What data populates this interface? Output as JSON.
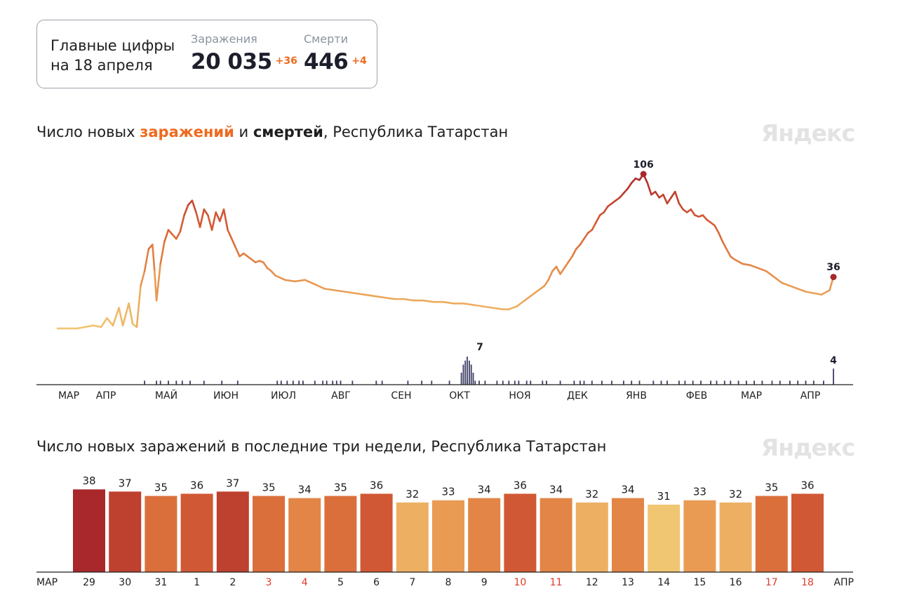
{
  "summary": {
    "title_line1": "Главные цифры",
    "title_line2": "на 18 апреля",
    "cases": {
      "label": "Заражения",
      "value": "20 035",
      "delta": "+36"
    },
    "deaths": {
      "label": "Смерти",
      "value": "446",
      "delta": "+4"
    }
  },
  "brand": "Яндекс",
  "colors": {
    "accent": "#ef6a1f",
    "deaths_bars": "#3d3e63",
    "holiday": "#e0392b"
  },
  "chart_data": [
    {
      "type": "line",
      "title_parts": [
        "Число новых ",
        "заражений",
        " и ",
        "смертей",
        ", Республика Татарстан"
      ],
      "x_labels": [
        "МАР",
        "АПР",
        "МАЙ",
        "ИЮН",
        "ИЮЛ",
        "АВГ",
        "СЕН",
        "ОКТ",
        "НОЯ",
        "ДЕК",
        "ЯНВ",
        "ФЕВ",
        "МАР",
        "АПР"
      ],
      "series": [
        {
          "values": [
            [
              0,
              1
            ],
            [
              10,
              1
            ],
            [
              14,
              2
            ],
            [
              18,
              3
            ],
            [
              22,
              2
            ],
            [
              25,
              8
            ],
            [
              28,
              3
            ],
            [
              31,
              15
            ],
            [
              33,
              3
            ],
            [
              36,
              18
            ],
            [
              38,
              4
            ],
            [
              40,
              2
            ],
            [
              42,
              30
            ],
            [
              44,
              40
            ],
            [
              46,
              55
            ],
            [
              48,
              58
            ],
            [
              49,
              40
            ],
            [
              50,
              20
            ],
            [
              52,
              45
            ],
            [
              54,
              60
            ],
            [
              56,
              68
            ],
            [
              58,
              65
            ],
            [
              60,
              62
            ],
            [
              62,
              67
            ],
            [
              64,
              78
            ],
            [
              66,
              85
            ],
            [
              68,
              88
            ],
            [
              70,
              80
            ],
            [
              72,
              70
            ],
            [
              74,
              82
            ],
            [
              76,
              78
            ],
            [
              78,
              68
            ],
            [
              80,
              80
            ],
            [
              82,
              74
            ],
            [
              84,
              82
            ],
            [
              86,
              68
            ],
            [
              88,
              62
            ],
            [
              90,
              56
            ],
            [
              92,
              50
            ],
            [
              94,
              52
            ],
            [
              96,
              50
            ],
            [
              98,
              48
            ],
            [
              100,
              46
            ],
            [
              102,
              47
            ],
            [
              104,
              46
            ],
            [
              106,
              42
            ],
            [
              108,
              40
            ],
            [
              110,
              37
            ],
            [
              115,
              34
            ],
            [
              120,
              33
            ],
            [
              125,
              34
            ],
            [
              130,
              31
            ],
            [
              135,
              28
            ],
            [
              140,
              27
            ],
            [
              145,
              26
            ],
            [
              150,
              25
            ],
            [
              155,
              24
            ],
            [
              160,
              23
            ],
            [
              165,
              22
            ],
            [
              170,
              21
            ],
            [
              175,
              21
            ],
            [
              180,
              20
            ],
            [
              185,
              20
            ],
            [
              190,
              19
            ],
            [
              195,
              19
            ],
            [
              200,
              18
            ],
            [
              205,
              18
            ],
            [
              210,
              17
            ],
            [
              215,
              16
            ],
            [
              220,
              15
            ],
            [
              225,
              14
            ],
            [
              228,
              14
            ],
            [
              232,
              16
            ],
            [
              236,
              20
            ],
            [
              240,
              24
            ],
            [
              244,
              28
            ],
            [
              246,
              30
            ],
            [
              248,
              34
            ],
            [
              250,
              40
            ],
            [
              252,
              43
            ],
            [
              254,
              38
            ],
            [
              256,
              42
            ],
            [
              258,
              46
            ],
            [
              260,
              50
            ],
            [
              262,
              55
            ],
            [
              264,
              58
            ],
            [
              266,
              62
            ],
            [
              268,
              66
            ],
            [
              270,
              68
            ],
            [
              272,
              73
            ],
            [
              274,
              78
            ],
            [
              276,
              80
            ],
            [
              278,
              84
            ],
            [
              280,
              86
            ],
            [
              282,
              88
            ],
            [
              284,
              90
            ],
            [
              286,
              93
            ],
            [
              288,
              96
            ],
            [
              290,
              100
            ],
            [
              292,
              103
            ],
            [
              294,
              102
            ],
            [
              296,
              106
            ],
            [
              298,
              100
            ],
            [
              300,
              92
            ],
            [
              302,
              94
            ],
            [
              304,
              90
            ],
            [
              306,
              92
            ],
            [
              308,
              86
            ],
            [
              310,
              90
            ],
            [
              312,
              94
            ],
            [
              314,
              86
            ],
            [
              316,
              82
            ],
            [
              318,
              80
            ],
            [
              320,
              82
            ],
            [
              322,
              78
            ],
            [
              324,
              77
            ],
            [
              326,
              78
            ],
            [
              328,
              75
            ],
            [
              330,
              73
            ],
            [
              332,
              71
            ],
            [
              334,
              66
            ],
            [
              336,
              60
            ],
            [
              338,
              55
            ],
            [
              340,
              50
            ],
            [
              342,
              48
            ],
            [
              346,
              45
            ],
            [
              350,
              44
            ],
            [
              354,
              42
            ],
            [
              358,
              40
            ],
            [
              362,
              36
            ],
            [
              366,
              32
            ],
            [
              370,
              30
            ],
            [
              374,
              28
            ],
            [
              378,
              26
            ],
            [
              382,
              25
            ],
            [
              386,
              24
            ],
            [
              390,
              27
            ],
            [
              392,
              36
            ]
          ]
        },
        {
          "values": [
            [
              44,
              1
            ],
            [
              50,
              1
            ],
            [
              52,
              1
            ],
            [
              56,
              1
            ],
            [
              60,
              1
            ],
            [
              63,
              1
            ],
            [
              67,
              1
            ],
            [
              74,
              1
            ],
            [
              83,
              1
            ],
            [
              91,
              1
            ],
            [
              111,
              1
            ],
            [
              113,
              1
            ],
            [
              116,
              1
            ],
            [
              119,
              1
            ],
            [
              122,
              1
            ],
            [
              124,
              1
            ],
            [
              130,
              1
            ],
            [
              134,
              1
            ],
            [
              136,
              1
            ],
            [
              139,
              1
            ],
            [
              141,
              1
            ],
            [
              143,
              1
            ],
            [
              149,
              1
            ],
            [
              161,
              1
            ],
            [
              164,
              1
            ],
            [
              177,
              1
            ],
            [
              184,
              1
            ],
            [
              189,
              1
            ],
            [
              198,
              1
            ],
            [
              207,
              1
            ],
            [
              211,
              1
            ],
            [
              213,
              1
            ],
            [
              216,
              1
            ],
            [
              222,
              1
            ],
            [
              225,
              1
            ],
            [
              228,
              1
            ],
            [
              231,
              1
            ],
            [
              233,
              1
            ],
            [
              237,
              1
            ],
            [
              239,
              1
            ],
            [
              245,
              1
            ],
            [
              247,
              1
            ],
            [
              254,
              1
            ],
            [
              261,
              1
            ],
            [
              264,
              1
            ],
            [
              266,
              1
            ],
            [
              270,
              1
            ],
            [
              275,
              1
            ],
            [
              280,
              1
            ],
            [
              286,
              1
            ],
            [
              290,
              1
            ],
            [
              294,
              1
            ],
            [
              301,
              1
            ],
            [
              305,
              1
            ],
            [
              308,
              1
            ],
            [
              314,
              1
            ],
            [
              317,
              1
            ],
            [
              321,
              1
            ],
            [
              325,
              1
            ],
            [
              330,
              1
            ],
            [
              333,
              1
            ],
            [
              337,
              1
            ],
            [
              340,
              1
            ],
            [
              344,
              1
            ],
            [
              348,
              1
            ],
            [
              352,
              1
            ],
            [
              356,
              1
            ],
            [
              361,
              1
            ],
            [
              365,
              1
            ],
            [
              370,
              1
            ],
            [
              374,
              1
            ],
            [
              378,
              1
            ],
            [
              382,
              1
            ],
            [
              387,
              1
            ],
            [
              392,
              4
            ]
          ]
        }
      ],
      "annotations": [
        {
          "x": 296,
          "value": "106"
        },
        {
          "x": 392,
          "value": "36"
        },
        {
          "value": "7"
        },
        {
          "x": 392,
          "value": "4"
        }
      ]
    },
    {
      "type": "bar",
      "title": "Число новых заражений в последние три недели, Республика Татарстан",
      "categories": [
        "29",
        "30",
        "31",
        "1",
        "2",
        "3",
        "4",
        "5",
        "6",
        "7",
        "8",
        "9",
        "10",
        "11",
        "12",
        "13",
        "14",
        "15",
        "16",
        "17",
        "18"
      ],
      "values": [
        38,
        37,
        35,
        36,
        37,
        35,
        34,
        35,
        36,
        32,
        33,
        34,
        36,
        34,
        32,
        34,
        31,
        33,
        32,
        35,
        36
      ],
      "weekend": [
        false,
        false,
        false,
        false,
        false,
        true,
        true,
        false,
        false,
        false,
        false,
        false,
        true,
        true,
        false,
        false,
        false,
        false,
        false,
        true,
        true
      ],
      "left_label": "МАР",
      "right_label": "АПР"
    }
  ]
}
